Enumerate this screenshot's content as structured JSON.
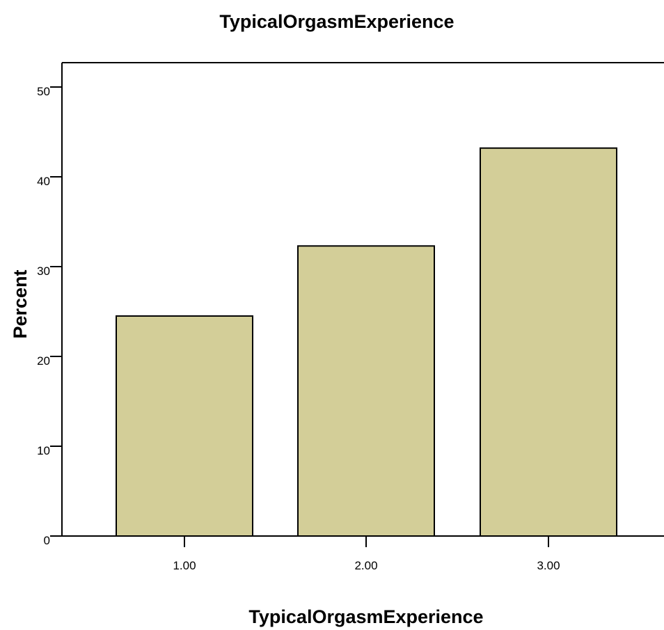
{
  "chart_data": {
    "type": "bar",
    "title": "TypicalOrgasmExperience",
    "xlabel": "TypicalOrgasmExperience",
    "ylabel": "Percent",
    "categories": [
      "1.00",
      "2.00",
      "3.00"
    ],
    "values": [
      24.5,
      32.3,
      43.2
    ],
    "ylim": [
      0,
      50
    ],
    "yticks": [
      0,
      10,
      20,
      30,
      40,
      50
    ],
    "ytick_labels": [
      "0",
      "10",
      "20",
      "30",
      "40",
      "50"
    ],
    "grid": false,
    "legend": "none",
    "colors": {
      "bar_fill": "#d3ce98",
      "bar_stroke": "#000000",
      "axis": "#000000",
      "background": "#ffffff"
    }
  }
}
